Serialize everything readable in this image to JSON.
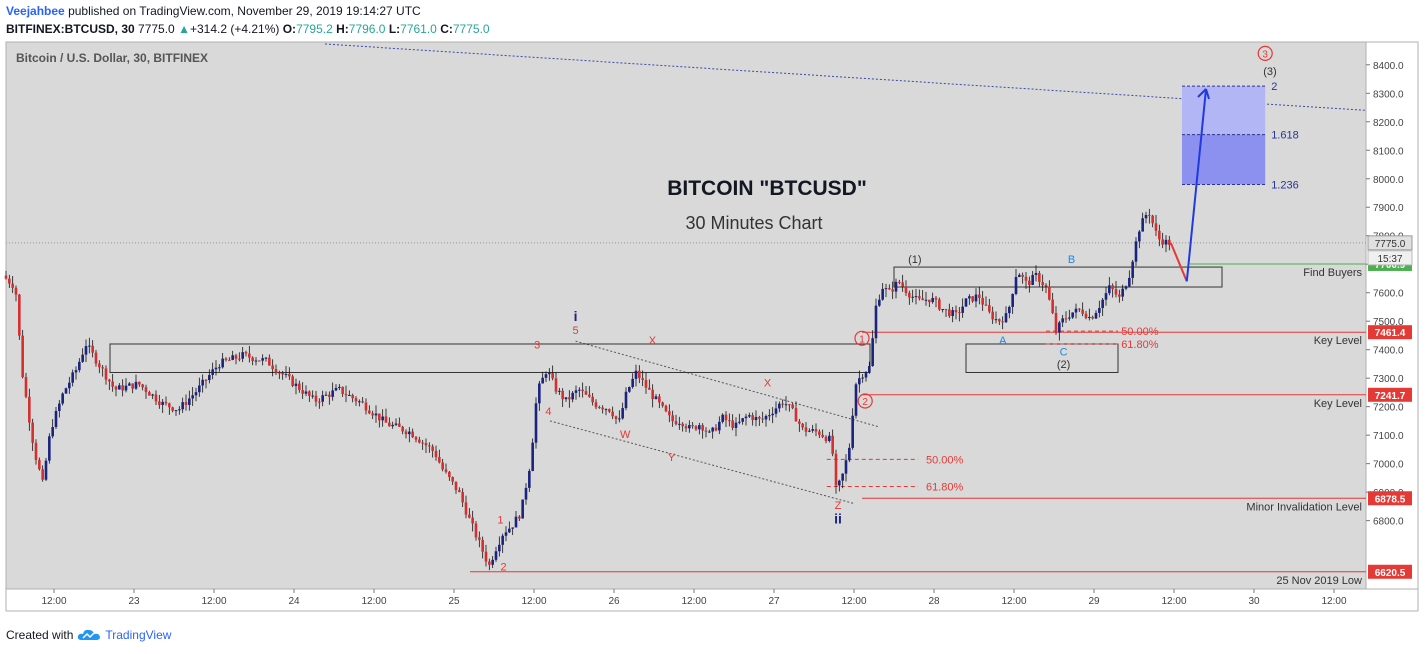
{
  "header": {
    "author": "Veejahbee",
    "published": "published on TradingView.com, November 29, 2019 19:14:27 UTC",
    "symbol": "BITFINEX:BTCUSD, 30",
    "last": "7775.0",
    "change_arrow": "▲",
    "change": "+314.2 (+4.21%)",
    "o_label": "O:",
    "o": "7795.2",
    "h_label": "H:",
    "h": "7796.0",
    "l_label": "L:",
    "l": "7761.0",
    "c_label": "C:",
    "c": "7775.0"
  },
  "footer": {
    "created_with": "Created with",
    "brand": "TradingView",
    "logo_icon": "tradingview-cloud-icon"
  },
  "chart_data": {
    "type": "candlestick",
    "pane_title": "Bitcoin / U.S. Dollar, 30, BITFINEX",
    "title": "BITCOIN \"BTCUSD\"",
    "subtitle": "30 Minutes Chart",
    "ylim": [
      6560,
      8480
    ],
    "y_ticks": [
      6800,
      6900,
      7000,
      7100,
      7200,
      7300,
      7400,
      7500,
      7600,
      7700,
      7800,
      7900,
      8000,
      8100,
      8200,
      8300,
      8400
    ],
    "x_ticks": [
      {
        "label": "12:00",
        "day": 0.5
      },
      {
        "label": "23",
        "day": 1
      },
      {
        "label": "12:00",
        "day": 1.5
      },
      {
        "label": "24",
        "day": 2
      },
      {
        "label": "12:00",
        "day": 2.5
      },
      {
        "label": "25",
        "day": 3
      },
      {
        "label": "12:00",
        "day": 3.5
      },
      {
        "label": "26",
        "day": 4
      },
      {
        "label": "12:00",
        "day": 4.5
      },
      {
        "label": "27",
        "day": 5
      },
      {
        "label": "12:00",
        "day": 5.5
      },
      {
        "label": "28",
        "day": 6
      },
      {
        "label": "12:00",
        "day": 6.5
      },
      {
        "label": "29",
        "day": 7
      },
      {
        "label": "12:00",
        "day": 7.5
      },
      {
        "label": "30",
        "day": 8
      },
      {
        "label": "12:00",
        "day": 8.5
      }
    ],
    "x_range_days": [
      0.2,
      8.7
    ],
    "last_price": 7775.0,
    "countdown": "15:37",
    "price_path": [
      [
        0.2,
        7660
      ],
      [
        0.28,
        7620
      ],
      [
        0.32,
        7330
      ],
      [
        0.36,
        7180
      ],
      [
        0.4,
        7040
      ],
      [
        0.45,
        6930
      ],
      [
        0.5,
        7120
      ],
      [
        0.58,
        7250
      ],
      [
        0.66,
        7330
      ],
      [
        0.72,
        7420
      ],
      [
        0.8,
        7350
      ],
      [
        0.9,
        7260
      ],
      [
        1.05,
        7280
      ],
      [
        1.2,
        7210
      ],
      [
        1.3,
        7190
      ],
      [
        1.42,
        7260
      ],
      [
        1.55,
        7350
      ],
      [
        1.7,
        7380
      ],
      [
        1.85,
        7360
      ],
      [
        2.0,
        7290
      ],
      [
        2.15,
        7220
      ],
      [
        2.3,
        7260
      ],
      [
        2.45,
        7210
      ],
      [
        2.6,
        7140
      ],
      [
        2.75,
        7110
      ],
      [
        2.9,
        7040
      ],
      [
        2.95,
        6980
      ],
      [
        3.05,
        6900
      ],
      [
        3.12,
        6800
      ],
      [
        3.18,
        6720
      ],
      [
        3.24,
        6640
      ],
      [
        3.28,
        6700
      ],
      [
        3.33,
        6760
      ],
      [
        3.38,
        6780
      ],
      [
        3.44,
        6830
      ],
      [
        3.5,
        7010
      ],
      [
        3.54,
        7250
      ],
      [
        3.6,
        7330
      ],
      [
        3.66,
        7260
      ],
      [
        3.72,
        7220
      ],
      [
        3.8,
        7260
      ],
      [
        3.9,
        7210
      ],
      [
        4.0,
        7190
      ],
      [
        4.05,
        7140
      ],
      [
        4.1,
        7250
      ],
      [
        4.16,
        7320
      ],
      [
        4.22,
        7270
      ],
      [
        4.3,
        7210
      ],
      [
        4.38,
        7150
      ],
      [
        4.44,
        7150
      ],
      [
        4.5,
        7120
      ],
      [
        4.56,
        7140
      ],
      [
        4.62,
        7100
      ],
      [
        4.7,
        7160
      ],
      [
        4.78,
        7130
      ],
      [
        4.86,
        7170
      ],
      [
        4.94,
        7150
      ],
      [
        5.02,
        7190
      ],
      [
        5.08,
        7220
      ],
      [
        5.14,
        7180
      ],
      [
        5.2,
        7120
      ],
      [
        5.3,
        7110
      ],
      [
        5.38,
        7080
      ],
      [
        5.41,
        6900
      ],
      [
        5.45,
        6960
      ],
      [
        5.49,
        7050
      ],
      [
        5.53,
        7280
      ],
      [
        5.58,
        7320
      ],
      [
        5.62,
        7340
      ],
      [
        5.66,
        7560
      ],
      [
        5.7,
        7620
      ],
      [
        5.74,
        7600
      ],
      [
        5.8,
        7640
      ],
      [
        5.86,
        7600
      ],
      [
        5.92,
        7570
      ],
      [
        6.0,
        7580
      ],
      [
        6.08,
        7540
      ],
      [
        6.16,
        7520
      ],
      [
        6.22,
        7570
      ],
      [
        6.3,
        7590
      ],
      [
        6.36,
        7530
      ],
      [
        6.42,
        7500
      ],
      [
        6.48,
        7520
      ],
      [
        6.54,
        7680
      ],
      [
        6.6,
        7630
      ],
      [
        6.66,
        7660
      ],
      [
        6.72,
        7620
      ],
      [
        6.76,
        7530
      ],
      [
        6.78,
        7460
      ],
      [
        6.82,
        7500
      ],
      [
        6.88,
        7530
      ],
      [
        6.94,
        7540
      ],
      [
        7.0,
        7510
      ],
      [
        7.06,
        7560
      ],
      [
        7.12,
        7620
      ],
      [
        7.18,
        7580
      ],
      [
        7.24,
        7660
      ],
      [
        7.3,
        7820
      ],
      [
        7.36,
        7890
      ],
      [
        7.42,
        7790
      ],
      [
        7.48,
        7775
      ]
    ],
    "wave_labels": [
      {
        "text": "1",
        "day": 3.29,
        "price": 6790,
        "color": "#e53935"
      },
      {
        "text": "2",
        "day": 3.31,
        "price": 6625,
        "color": "#e53935"
      },
      {
        "text": "3",
        "day": 3.52,
        "price": 7405,
        "color": "#e53935"
      },
      {
        "text": "4",
        "day": 3.59,
        "price": 7170,
        "color": "#e53935"
      },
      {
        "text": "5",
        "day": 3.76,
        "price": 7455,
        "color": "#e53935"
      },
      {
        "text": "i",
        "day": 3.76,
        "price": 7500,
        "color": "#1a237e"
      },
      {
        "text": "X",
        "day": 4.24,
        "price": 7420,
        "color": "#e53935"
      },
      {
        "text": "W",
        "day": 4.07,
        "price": 7090,
        "color": "#e53935"
      },
      {
        "text": "Y",
        "day": 4.36,
        "price": 7010,
        "color": "#e53935"
      },
      {
        "text": "X",
        "day": 4.96,
        "price": 7270,
        "color": "#e53935"
      },
      {
        "text": "Z",
        "day": 5.4,
        "price": 6840,
        "color": "#e53935"
      },
      {
        "text": "ii",
        "day": 5.4,
        "price": 6790,
        "color": "#1a237e"
      },
      {
        "text": "A",
        "day": 6.43,
        "price": 7420,
        "color": "#1e88e5"
      },
      {
        "text": "B",
        "day": 6.86,
        "price": 7705,
        "color": "#1e88e5"
      },
      {
        "text": "C",
        "day": 6.81,
        "price": 7380,
        "color": "#1e88e5"
      },
      {
        "text": "(1)",
        "day": 5.88,
        "price": 7705,
        "color": "#333333"
      },
      {
        "text": "(2)",
        "day": 6.81,
        "price": 7335,
        "color": "#333333"
      },
      {
        "text": "(3)",
        "day": 8.1,
        "price": 8365,
        "color": "#333333"
      }
    ],
    "circle_labels": [
      {
        "text": "1",
        "day": 5.55,
        "price": 7440,
        "color": "#e53935"
      },
      {
        "text": "2",
        "day": 5.57,
        "price": 7220,
        "color": "#e53935"
      },
      {
        "text": "3",
        "day": 8.07,
        "price": 8440,
        "color": "#e53935"
      }
    ],
    "fib_left": [
      {
        "label": "50.00%",
        "price": 7015,
        "color": "#e53935"
      },
      {
        "label": "61.80%",
        "price": 6920,
        "color": "#e53935"
      }
    ],
    "fib_right": [
      {
        "label": "50.00%",
        "price": 7465,
        "color": "#e53935"
      },
      {
        "label": "61.80%",
        "price": 7420,
        "color": "#e53935"
      }
    ],
    "extension_levels": [
      {
        "label": "2",
        "price": 8325,
        "color": "#283593"
      },
      {
        "label": "1.618",
        "price": 8155,
        "color": "#283593"
      },
      {
        "label": "1.236",
        "price": 7980,
        "color": "#283593"
      }
    ],
    "horizontal_levels": [
      {
        "price": 7700.9,
        "label": "Find Buyers",
        "badge": "7700.9",
        "color": "#4caf50"
      },
      {
        "price": 7461.4,
        "label": "Key Level",
        "badge": "7461.4",
        "color": "#e53935"
      },
      {
        "price": 7241.7,
        "label": "Key Level",
        "badge": "7241.7",
        "color": "#e53935"
      },
      {
        "price": 6878.5,
        "label": "Minor Invalidation Level",
        "badge": "6878.5",
        "color": "#e53935"
      },
      {
        "price": 6620.5,
        "label": "25 Nov 2019 Low",
        "badge": "6620.5",
        "color": "#e53935"
      }
    ],
    "projection_path": [
      [
        7.48,
        7775
      ],
      [
        7.58,
        7640
      ],
      [
        7.7,
        8315
      ]
    ]
  }
}
